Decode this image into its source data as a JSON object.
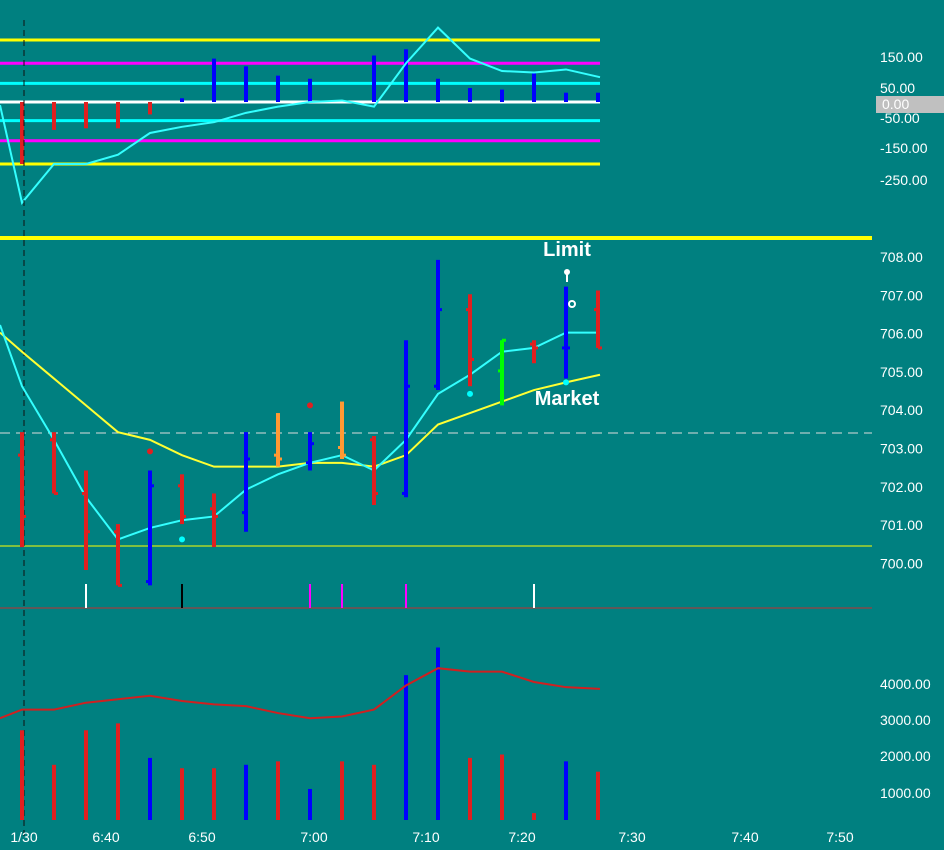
{
  "chart_data": {
    "type": "candlestick",
    "time_axis": {
      "ticks": [
        "1/30",
        "6:40",
        "6:50",
        "7:00",
        "7:10",
        "7:20",
        "7:30",
        "7:40",
        "7:50"
      ]
    },
    "bars": [
      {
        "t": "6:30",
        "open": 702.8,
        "high": 703.4,
        "low": 700.4,
        "close": 701.2,
        "color": "red"
      },
      {
        "t": "6:33",
        "open": 703.2,
        "high": 703.4,
        "low": 701.8,
        "close": 701.8,
        "color": "red"
      },
      {
        "t": "6:36",
        "open": 701.8,
        "high": 702.4,
        "low": 699.8,
        "close": 700.8,
        "color": "red"
      },
      {
        "t": "6:39",
        "open": 700.8,
        "high": 701.0,
        "low": 699.4,
        "close": 699.4,
        "color": "red"
      },
      {
        "t": "6:42",
        "open": 699.5,
        "high": 702.4,
        "low": 699.4,
        "close": 702.0,
        "color": "blue"
      },
      {
        "t": "6:45",
        "open": 702.0,
        "high": 702.3,
        "low": 701.0,
        "close": 701.2,
        "color": "red"
      },
      {
        "t": "6:48",
        "open": 701.4,
        "high": 701.8,
        "low": 700.4,
        "close": 701.2,
        "color": "red"
      },
      {
        "t": "6:51",
        "open": 701.3,
        "high": 703.4,
        "low": 700.8,
        "close": 702.7,
        "color": "blue"
      },
      {
        "t": "6:54",
        "open": 702.8,
        "high": 703.9,
        "low": 702.5,
        "close": 702.7,
        "color": "orange"
      },
      {
        "t": "6:57",
        "open": 702.6,
        "high": 703.4,
        "low": 702.4,
        "close": 703.1,
        "color": "blue"
      },
      {
        "t": "7:00",
        "open": 703.0,
        "high": 704.2,
        "low": 702.7,
        "close": 702.8,
        "color": "orange"
      },
      {
        "t": "7:03",
        "open": 703.2,
        "high": 703.3,
        "low": 701.5,
        "close": 701.8,
        "color": "red"
      },
      {
        "t": "7:06",
        "open": 701.8,
        "high": 705.8,
        "low": 701.7,
        "close": 704.6,
        "color": "blue"
      },
      {
        "t": "7:09",
        "open": 704.6,
        "high": 707.9,
        "low": 704.5,
        "close": 706.6,
        "color": "blue"
      },
      {
        "t": "7:12",
        "open": 706.6,
        "high": 707.0,
        "low": 704.6,
        "close": 705.3,
        "color": "red"
      },
      {
        "t": "7:15",
        "open": 705.0,
        "high": 705.8,
        "low": 704.1,
        "close": 705.8,
        "color": "lime"
      },
      {
        "t": "7:18",
        "open": 705.7,
        "high": 705.8,
        "low": 705.2,
        "close": 705.6,
        "color": "red"
      },
      {
        "t": "7:21",
        "open": 705.6,
        "high": 707.2,
        "low": 704.8,
        "close": 705.6,
        "color": "blue"
      },
      {
        "t": "7:24",
        "open": 706.6,
        "high": 707.1,
        "low": 705.6,
        "close": 705.6,
        "color": "red"
      }
    ],
    "price_axis": {
      "ticks": [
        700.0,
        701.0,
        702.0,
        703.0,
        704.0,
        705.0,
        706.0,
        707.0,
        708.0
      ]
    },
    "price_fast_ma": [
      706.2,
      704.6,
      703.2,
      701.7,
      700.6,
      700.9,
      701.1,
      701.2,
      701.9,
      702.3,
      702.6,
      702.8,
      702.4,
      703.2,
      704.4,
      704.9,
      705.5,
      705.6,
      706.0,
      706.0
    ],
    "price_slow_ma": [
      706.0,
      705.5,
      704.8,
      704.1,
      703.4,
      703.2,
      702.8,
      702.5,
      702.5,
      702.5,
      702.6,
      702.6,
      702.5,
      702.8,
      703.6,
      703.9,
      704.2,
      704.5,
      704.7,
      704.9
    ],
    "price_hlines": [
      {
        "value": 708.5,
        "color": "#ffff00"
      },
      {
        "value": 703.4,
        "color": "#dddddd",
        "dashed": true
      },
      {
        "value": 700.4,
        "color": "#ffff00"
      }
    ],
    "price_dots": [
      {
        "bar": 5,
        "value": 700.6,
        "color": "cyan"
      },
      {
        "bar": 14,
        "value": 704.4,
        "color": "cyan"
      },
      {
        "bar": 17,
        "value": 704.7,
        "color": "cyan"
      },
      {
        "bar": 9,
        "value": 704.1,
        "color": "red"
      },
      {
        "bar": 4,
        "value": 702.9,
        "color": "red"
      }
    ],
    "annotations": {
      "limit": "Limit",
      "market": "Market"
    },
    "marker_ticks": [
      {
        "bar": 2,
        "color": "#ffffff"
      },
      {
        "bar": 5,
        "color": "#000000"
      },
      {
        "bar": 9,
        "color": "#ff00ff"
      },
      {
        "bar": 10,
        "color": "#ff00ff"
      },
      {
        "bar": 12,
        "color": "#ff00ff"
      },
      {
        "bar": 16,
        "color": "#ffffff"
      }
    ],
    "oscillator": {
      "axis_ticks": [
        "150.00",
        "50.00",
        "-50.00",
        "-150.00",
        "-250.00"
      ],
      "current_value_label": "0.00",
      "levels": [
        {
          "value": 200,
          "color": "#ffff00"
        },
        {
          "value": 125,
          "color": "#ff00ff"
        },
        {
          "value": 60,
          "color": "#00ffff"
        },
        {
          "value": 0,
          "color": "#ffffff"
        },
        {
          "value": -60,
          "color": "#00ffff"
        },
        {
          "value": -125,
          "color": "#ff00ff"
        },
        {
          "value": -200,
          "color": "#ffff00"
        }
      ],
      "histogram": [
        -200,
        -90,
        -85,
        -85,
        -40,
        12,
        140,
        115,
        85,
        75,
        0,
        150,
        170,
        75,
        45,
        40,
        95,
        30
      ],
      "line": [
        -10,
        -325,
        -200,
        -200,
        -170,
        -100,
        -80,
        -65,
        -35,
        -15,
        0,
        5,
        -15,
        125,
        240,
        140,
        100,
        95,
        105,
        80
      ]
    },
    "volume": {
      "axis_ticks": [
        "4000.00",
        "3000.00",
        "2000.00",
        "1000.00"
      ],
      "bars": [
        2600,
        1600,
        2600,
        2800,
        1800,
        1500,
        1500,
        1600,
        1700,
        900,
        1700,
        1600,
        4200,
        5000,
        1800,
        1900,
        200,
        1700,
        1400
      ],
      "ma": [
        3200,
        3200,
        3400,
        3500,
        3600,
        3450,
        3350,
        3300,
        3100,
        2950,
        3000,
        3200,
        3900,
        4400,
        4300,
        4300,
        4000,
        3850,
        3800
      ]
    }
  }
}
